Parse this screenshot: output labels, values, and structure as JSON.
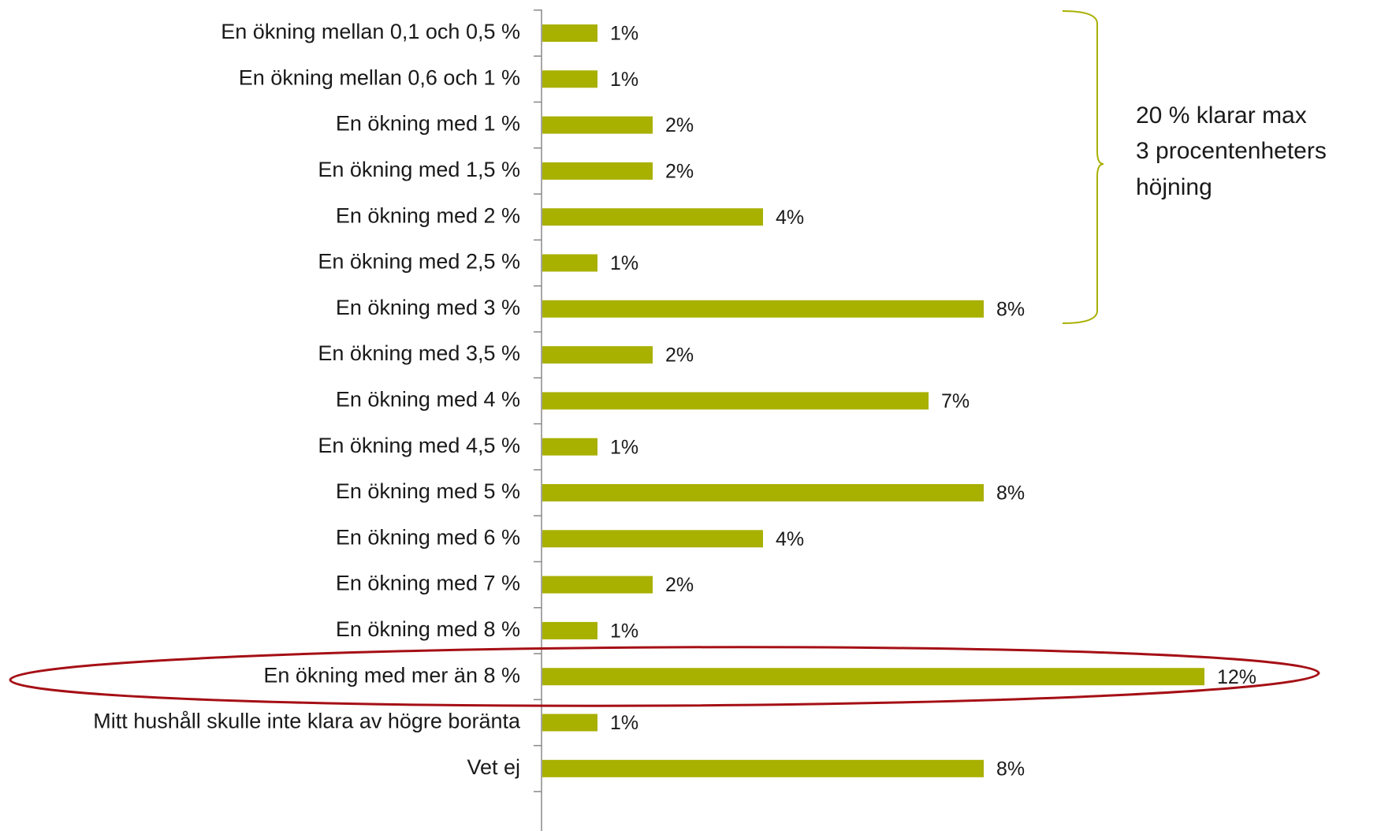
{
  "chart_data": {
    "type": "barh",
    "categories": [
      "En ökning mellan 0,1 och 0,5 %",
      "En ökning mellan 0,6 och 1 %",
      "En ökning med 1 %",
      "En ökning med 1,5 %",
      "En ökning med 2 %",
      "En ökning med 2,5 %",
      "En ökning med 3 %",
      "En ökning med 3,5 %",
      "En ökning med 4 %",
      "En ökning med 4,5 %",
      "En ökning med 5 %",
      "En ökning med 6 %",
      "En ökning med 7 %",
      "En ökning med 8 %",
      "En ökning med mer än 8 %",
      "Mitt hushåll skulle inte klara av högre boränta",
      "Vet ej"
    ],
    "values": [
      1,
      1,
      2,
      2,
      4,
      1,
      8,
      2,
      7,
      1,
      8,
      4,
      2,
      1,
      12,
      1,
      8
    ],
    "value_labels": [
      "1%",
      "1%",
      "2%",
      "2%",
      "4%",
      "1%",
      "8%",
      "2%",
      "7%",
      "1%",
      "8%",
      "4%",
      "2%",
      "1%",
      "12%",
      "1%",
      "8%"
    ],
    "color": "#a8b000",
    "annotation": [
      "20 % klarar max",
      "3 procentenheters",
      "höjning"
    ]
  }
}
